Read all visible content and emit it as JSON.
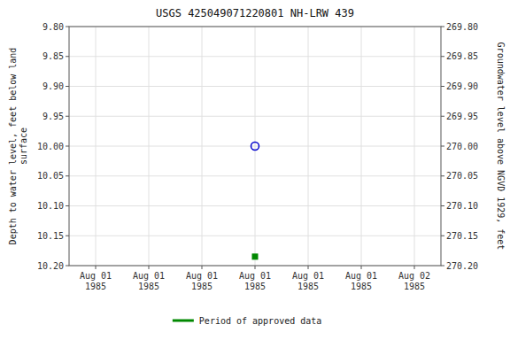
{
  "chart_data": {
    "type": "scatter",
    "title": "USGS 425049071220801 NH-LRW  439",
    "ylabel": "Depth to water level, feet below land\nsurface",
    "y2label": "Groundwater level above NGVD 1929, feet",
    "categories": [
      "Aug 01\n1985",
      "Aug 01\n1985",
      "Aug 01\n1985",
      "Aug 01\n1985",
      "Aug 01\n1985",
      "Aug 01\n1985",
      "Aug 02\n1985"
    ],
    "series": [
      {
        "color": "#0000cc",
        "marker": "open-circle",
        "values": [
          null,
          null,
          null,
          10.0,
          null,
          null,
          null
        ]
      },
      {
        "name": "Period of approved data",
        "color": "#008800",
        "marker": "square",
        "values": [
          null,
          null,
          null,
          10.185,
          null,
          null,
          null
        ]
      }
    ],
    "ylim": [
      10.2,
      9.8
    ],
    "yticks": [
      {
        "value": 9.8,
        "label": "9.80"
      },
      9.85,
      {
        "value": 9.9,
        "label": "9.90"
      },
      9.95,
      {
        "value": 10.0,
        "label": "10.00"
      },
      10.05,
      {
        "value": 10.1,
        "label": "10.10"
      },
      10.15,
      {
        "value": 10.2,
        "label": "10.20"
      }
    ],
    "y2lim": [
      270.2,
      269.8
    ],
    "y2ticks": [
      {
        "value": 269.8,
        "label": "269.80"
      },
      269.85,
      {
        "value": 269.9,
        "label": "269.90"
      },
      269.95,
      {
        "value": 270.0,
        "label": "270.00"
      },
      270.05,
      {
        "value": 270.1,
        "label": "270.10"
      },
      270.15,
      {
        "value": 270.2,
        "label": "270.20"
      }
    ],
    "grid": true,
    "legend": "bottom"
  }
}
